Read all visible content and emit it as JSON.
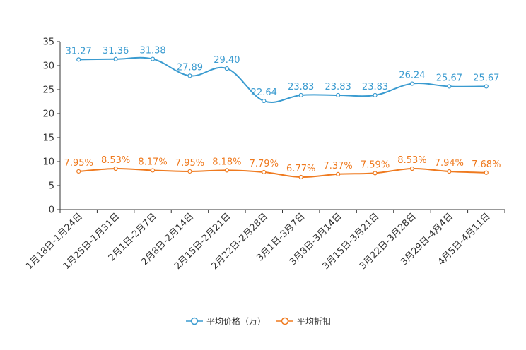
{
  "chart_data": {
    "type": "line",
    "title": "",
    "xlabel": "",
    "ylabel": "",
    "ylim": [
      0,
      35
    ],
    "yticks": [
      0,
      5,
      10,
      15,
      20,
      25,
      30,
      35
    ],
    "grid": false,
    "legend_position": "bottom-center",
    "categories": [
      "1月18日-1月24日",
      "1月25日-1月31日",
      "2月1日-2月7日",
      "2月8日-2月14日",
      "2月15日-2月21日",
      "2月22日-2月28日",
      "3月1日-3月7日",
      "3月8日-3月14日",
      "3月15日-3月21日",
      "3月22日-3月28日",
      "3月29日-4月4日",
      "4月5日-4月11日"
    ],
    "series": [
      {
        "name": "平均价格（万）",
        "color": "#3a9bd0",
        "values": [
          31.27,
          31.36,
          31.38,
          27.89,
          29.4,
          22.64,
          23.83,
          23.83,
          23.83,
          26.24,
          25.67,
          25.67
        ],
        "labels": [
          "31.27",
          "31.36",
          "31.38",
          "27.89",
          "29.40",
          "22.64",
          "23.83",
          "23.83",
          "23.83",
          "26.24",
          "25.67",
          "25.67"
        ]
      },
      {
        "name": "平均折扣",
        "color": "#ef7a1f",
        "values": [
          7.95,
          8.53,
          8.17,
          7.95,
          8.18,
          7.79,
          6.77,
          7.37,
          7.59,
          8.53,
          7.94,
          7.68
        ],
        "labels": [
          "7.95%",
          "8.53%",
          "8.17%",
          "7.95%",
          "8.18%",
          "7.79%",
          "6.77%",
          "7.37%",
          "7.59%",
          "8.53%",
          "7.94%",
          "7.68%"
        ]
      }
    ]
  }
}
